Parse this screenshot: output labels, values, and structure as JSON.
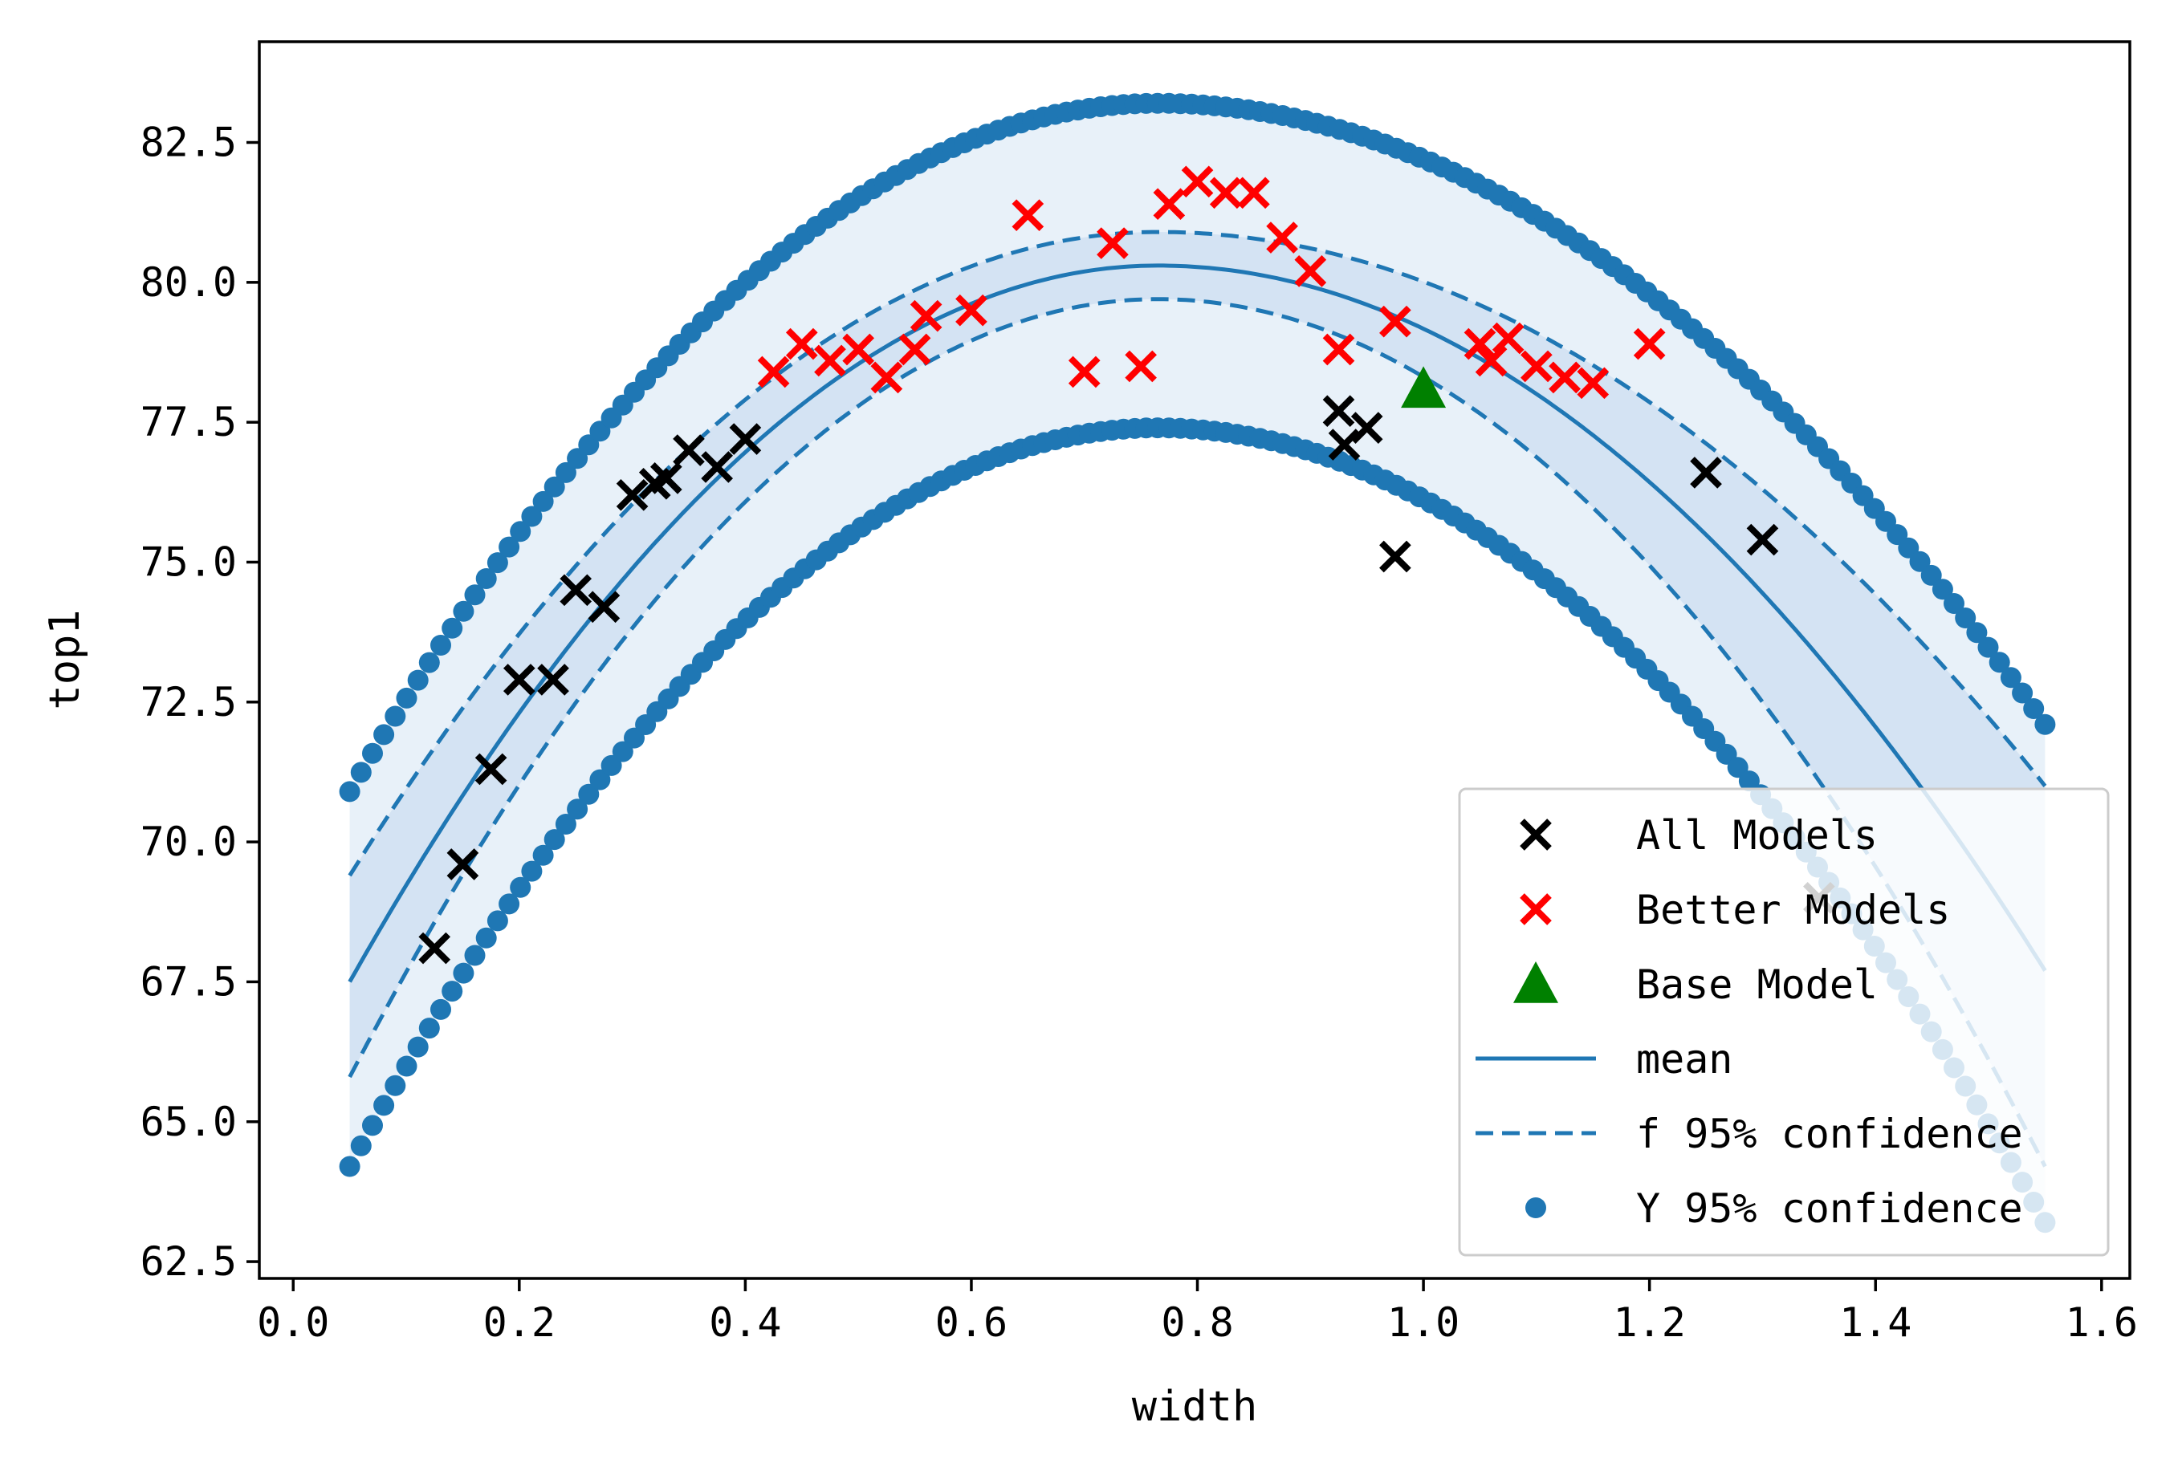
{
  "chart_data": {
    "type": "scatter",
    "title": "",
    "xlabel": "width",
    "ylabel": "top1",
    "xlim": [
      -0.03,
      1.625
    ],
    "ylim": [
      62.2,
      84.3
    ],
    "xticks": [
      0.0,
      0.2,
      0.4,
      0.6,
      0.8,
      1.0,
      1.2,
      1.4,
      1.6
    ],
    "xtick_labels": [
      "0.0",
      "0.2",
      "0.4",
      "0.6",
      "0.8",
      "1.0",
      "1.2",
      "1.4",
      "1.6"
    ],
    "yticks": [
      62.5,
      65.0,
      67.5,
      70.0,
      72.5,
      75.0,
      77.5,
      80.0,
      82.5
    ],
    "ytick_labels": [
      "62.5",
      "65.0",
      "67.5",
      "70.0",
      "72.5",
      "75.0",
      "77.5",
      "80.0",
      "82.5"
    ],
    "grid": false,
    "legend_position": "lower-right",
    "colors": {
      "all_models": "#000000",
      "better_models": "#ff0000",
      "base_model": "#008000",
      "mean": "#1f77b4",
      "f_band_fill": "#c6dbef",
      "y_band_fill": "#e6f0f8"
    },
    "series": [
      {
        "name": "All Models",
        "marker": "x",
        "points": [
          [
            0.125,
            68.1
          ],
          [
            0.15,
            69.6
          ],
          [
            0.175,
            71.3
          ],
          [
            0.2,
            72.9
          ],
          [
            0.23,
            72.9
          ],
          [
            0.25,
            74.5
          ],
          [
            0.275,
            74.2
          ],
          [
            0.3,
            76.2
          ],
          [
            0.32,
            76.4
          ],
          [
            0.33,
            76.5
          ],
          [
            0.35,
            77.0
          ],
          [
            0.375,
            76.7
          ],
          [
            0.4,
            77.2
          ],
          [
            0.925,
            77.7
          ],
          [
            0.93,
            77.1
          ],
          [
            0.95,
            77.4
          ],
          [
            0.975,
            75.1
          ],
          [
            1.25,
            76.6
          ],
          [
            1.3,
            75.4
          ],
          [
            1.35,
            69.0
          ]
        ]
      },
      {
        "name": "Better Models",
        "marker": "x",
        "points": [
          [
            0.425,
            78.4
          ],
          [
            0.45,
            78.9
          ],
          [
            0.475,
            78.6
          ],
          [
            0.5,
            78.8
          ],
          [
            0.525,
            78.3
          ],
          [
            0.55,
            78.8
          ],
          [
            0.56,
            79.4
          ],
          [
            0.6,
            79.5
          ],
          [
            0.65,
            81.2
          ],
          [
            0.7,
            78.4
          ],
          [
            0.725,
            80.7
          ],
          [
            0.75,
            78.5
          ],
          [
            0.775,
            81.4
          ],
          [
            0.8,
            81.8
          ],
          [
            0.825,
            81.6
          ],
          [
            0.85,
            81.6
          ],
          [
            0.875,
            80.8
          ],
          [
            0.9,
            80.2
          ],
          [
            0.925,
            78.8
          ],
          [
            0.975,
            79.3
          ],
          [
            1.05,
            78.9
          ],
          [
            1.06,
            78.6
          ],
          [
            1.075,
            79.0
          ],
          [
            1.1,
            78.5
          ],
          [
            1.125,
            78.3
          ],
          [
            1.15,
            78.2
          ],
          [
            1.2,
            78.9
          ]
        ]
      },
      {
        "name": "Base Model",
        "marker": "triangle",
        "points": [
          [
            1.0,
            78.1
          ]
        ]
      }
    ],
    "curves": {
      "x_range": [
        0.05,
        1.55
      ],
      "x_peak": 0.765,
      "mean": {
        "peak": 80.3,
        "at_0_05": 67.5,
        "at_1_55": 67.7
      },
      "f_95_upper": {
        "peak": 80.9,
        "at_0_05": 69.4,
        "at_1_55": 71.0
      },
      "f_95_lower": {
        "peak": 79.7,
        "at_0_05": 65.8,
        "at_1_55": 64.2
      },
      "y_95_upper": {
        "peak": 83.2,
        "at_0_05": 70.9,
        "at_1_55": 72.1
      },
      "y_95_lower": {
        "peak": 77.4,
        "at_0_05": 64.2,
        "at_1_55": 63.2
      },
      "y_dot_count": 150
    },
    "legend": {
      "entries": [
        {
          "key": "all_models",
          "label": "All Models"
        },
        {
          "key": "better_models",
          "label": "Better Models"
        },
        {
          "key": "base_model",
          "label": "Base Model"
        },
        {
          "key": "mean",
          "label": "mean"
        },
        {
          "key": "f95",
          "label": "f 95% confidence"
        },
        {
          "key": "y95",
          "label": "Y 95% confidence"
        }
      ]
    }
  }
}
